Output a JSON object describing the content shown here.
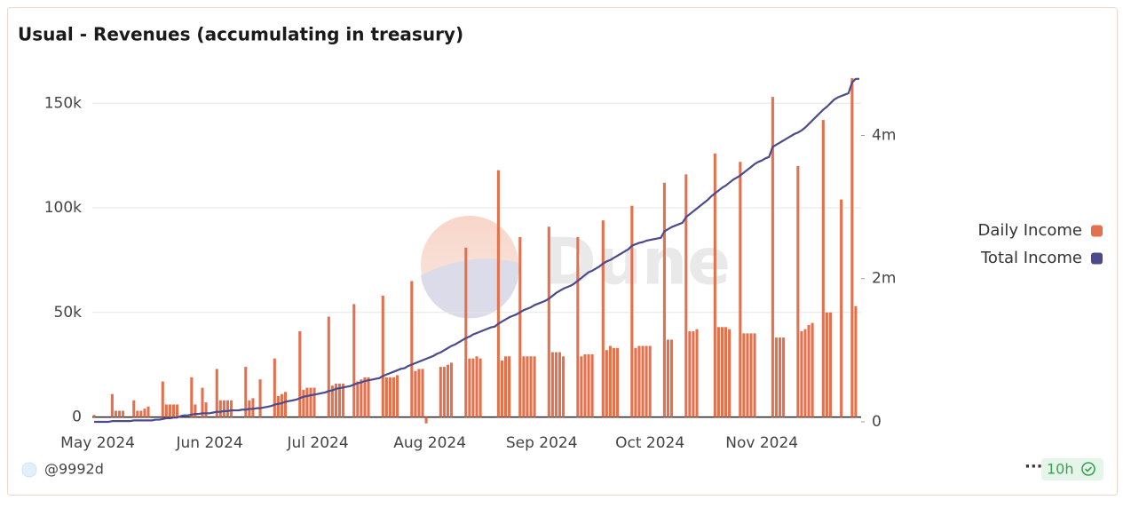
{
  "chart_data": {
    "type": "bar",
    "title": "Usual - Revenues (accumulating in treasury)",
    "watermark": "Dune",
    "author": "@9992d",
    "age": "10h",
    "categories": [
      null,
      "May 2024",
      null,
      null,
      null,
      null,
      null,
      null,
      null,
      null,
      null,
      null,
      null,
      null,
      null,
      null,
      null,
      null,
      null,
      null,
      null,
      null,
      null,
      null,
      null,
      null,
      null,
      null,
      null,
      null,
      null,
      null,
      "Jun 2024",
      null,
      null,
      null,
      null,
      null,
      null,
      null,
      null,
      null,
      null,
      null,
      null,
      null,
      null,
      null,
      null,
      null,
      null,
      null,
      null,
      null,
      null,
      null,
      null,
      null,
      null,
      null,
      null,
      null,
      "Jul 2024",
      null,
      null,
      null,
      null,
      null,
      null,
      null,
      null,
      null,
      null,
      null,
      null,
      null,
      null,
      null,
      null,
      null,
      null,
      null,
      null,
      null,
      null,
      null,
      null,
      null,
      null,
      null,
      null,
      null,
      null,
      "Aug 2024",
      null,
      null,
      null,
      null,
      null,
      null,
      null,
      null,
      null,
      null,
      null,
      null,
      null,
      null,
      null,
      null,
      null,
      null,
      null,
      null,
      null,
      null,
      null,
      null,
      null,
      null,
      null,
      null,
      null,
      null,
      "Sep 2024",
      null,
      null,
      null,
      null,
      null,
      null,
      null,
      null,
      null,
      null,
      null,
      null,
      null,
      null,
      null,
      null,
      null,
      null,
      null,
      null,
      null,
      null,
      null,
      null,
      null,
      null,
      null,
      null,
      null,
      "Oct 2024",
      null,
      null,
      null,
      null,
      null,
      null,
      null,
      null,
      null,
      null,
      null,
      null,
      null,
      null,
      null,
      null,
      null,
      null,
      null,
      null,
      null,
      null,
      null,
      null,
      null,
      null,
      null,
      null,
      null,
      null,
      "Nov 2024",
      null,
      null,
      null,
      null,
      null,
      null,
      null,
      null,
      null,
      null,
      null,
      null,
      null,
      null,
      null,
      null,
      null,
      null,
      null,
      null,
      null,
      null,
      null,
      null,
      null,
      null,
      null
    ],
    "series": [
      {
        "name": "Daily Income",
        "color": "#e4714d",
        "type": "bar",
        "values": [
          1000,
          0,
          0,
          0,
          0,
          11000,
          3000,
          3000,
          3000,
          0,
          0,
          8000,
          3000,
          3000,
          4000,
          5000,
          0,
          0,
          0,
          17000,
          6000,
          6000,
          6000,
          6000,
          0,
          0,
          0,
          19000,
          6000,
          0,
          14000,
          7000,
          0,
          0,
          23000,
          8000,
          8000,
          8000,
          8000,
          0,
          0,
          0,
          24000,
          8000,
          9000,
          0,
          18000,
          0,
          0,
          0,
          28000,
          10000,
          11000,
          12000,
          0,
          0,
          0,
          41000,
          13000,
          14000,
          14000,
          14000,
          0,
          0,
          0,
          48000,
          15000,
          16000,
          16000,
          16000,
          0,
          0,
          54000,
          17000,
          18000,
          19000,
          19000,
          0,
          0,
          0,
          58000,
          19000,
          19000,
          19000,
          20000,
          0,
          0,
          0,
          65000,
          22000,
          23000,
          23000,
          -3000,
          0,
          0,
          0,
          24000,
          24000,
          25000,
          26000,
          0,
          0,
          0,
          81000,
          28000,
          28000,
          29000,
          28000,
          0,
          0,
          0,
          0,
          118000,
          27000,
          29000,
          29000,
          0,
          0,
          86000,
          29000,
          29000,
          29000,
          29000,
          0,
          0,
          0,
          91000,
          31000,
          31000,
          31000,
          29000,
          0,
          0,
          0,
          86000,
          29000,
          30000,
          30000,
          30000,
          0,
          0,
          94000,
          32000,
          34000,
          33000,
          33000,
          0,
          0,
          0,
          101000,
          33000,
          34000,
          34000,
          34000,
          34000,
          0,
          0,
          0,
          112000,
          37000,
          37000,
          0,
          0,
          0,
          116000,
          41000,
          41000,
          42000,
          0,
          0,
          0,
          0,
          126000,
          43000,
          43000,
          43000,
          42000,
          0,
          0,
          122000,
          40000,
          40000,
          40000,
          40000,
          0,
          0,
          0,
          0,
          153000,
          38000,
          38000,
          38000,
          0,
          0,
          0,
          120000,
          41000,
          42000,
          44000,
          45000,
          0,
          0,
          142000,
          50000,
          50000,
          0,
          0,
          104000,
          0,
          0,
          162000,
          53000,
          0
        ]
      },
      {
        "name": "Total Income",
        "color": "#4a4a8c",
        "type": "line",
        "axis": "y2",
        "values": [
          0,
          0,
          0,
          0,
          0,
          10000,
          10000,
          10000,
          10000,
          10000,
          10000,
          20000,
          20000,
          20000,
          20000,
          20000,
          20000,
          30000,
          30000,
          40000,
          50000,
          50000,
          60000,
          60000,
          80000,
          90000,
          90000,
          100000,
          110000,
          110000,
          120000,
          120000,
          120000,
          130000,
          140000,
          140000,
          150000,
          150000,
          160000,
          160000,
          160000,
          170000,
          170000,
          180000,
          180000,
          190000,
          190000,
          200000,
          210000,
          220000,
          240000,
          250000,
          260000,
          280000,
          290000,
          300000,
          310000,
          330000,
          350000,
          360000,
          370000,
          380000,
          390000,
          400000,
          410000,
          430000,
          440000,
          460000,
          470000,
          480000,
          490000,
          500000,
          520000,
          540000,
          550000,
          570000,
          580000,
          590000,
          600000,
          610000,
          640000,
          660000,
          680000,
          700000,
          720000,
          740000,
          750000,
          780000,
          800000,
          820000,
          840000,
          860000,
          880000,
          900000,
          920000,
          950000,
          970000,
          1000000,
          1030000,
          1060000,
          1080000,
          1110000,
          1140000,
          1170000,
          1190000,
          1220000,
          1240000,
          1260000,
          1280000,
          1300000,
          1320000,
          1330000,
          1370000,
          1400000,
          1430000,
          1460000,
          1480000,
          1500000,
          1530000,
          1560000,
          1580000,
          1600000,
          1630000,
          1650000,
          1670000,
          1690000,
          1720000,
          1760000,
          1800000,
          1830000,
          1860000,
          1880000,
          1900000,
          1930000,
          1970000,
          2010000,
          2050000,
          2090000,
          2110000,
          2140000,
          2170000,
          2210000,
          2240000,
          2260000,
          2290000,
          2320000,
          2350000,
          2380000,
          2410000,
          2460000,
          2480000,
          2500000,
          2510000,
          2530000,
          2540000,
          2550000,
          2560000,
          2570000,
          2660000,
          2690000,
          2720000,
          2740000,
          2760000,
          2780000,
          2860000,
          2900000,
          2940000,
          2980000,
          3020000,
          3060000,
          3100000,
          3150000,
          3190000,
          3230000,
          3270000,
          3300000,
          3340000,
          3380000,
          3410000,
          3440000,
          3480000,
          3520000,
          3560000,
          3600000,
          3630000,
          3650000,
          3680000,
          3700000,
          3840000,
          3870000,
          3900000,
          3930000,
          3960000,
          3990000,
          4020000,
          4040000,
          4070000,
          4110000,
          4160000,
          4210000,
          4260000,
          4310000,
          4360000,
          4400000,
          4450000,
          4500000,
          4530000,
          4550000,
          4570000,
          4590000,
          4740000,
          4790000,
          4790000
        ]
      }
    ],
    "ylim": [
      -4000,
      162000
    ],
    "yticks": [
      0,
      {
        "value": 50000,
        "label": "50k"
      },
      {
        "value": 100000,
        "label": "100k"
      },
      {
        "value": 150000,
        "label": "150k"
      }
    ],
    "y2lim": [
      -50000,
      4800000
    ],
    "y2ticks": [
      0,
      {
        "value": 2000000,
        "label": "2m"
      },
      {
        "value": 4000000,
        "label": "4m"
      }
    ],
    "grid": true,
    "legend": "right"
  }
}
